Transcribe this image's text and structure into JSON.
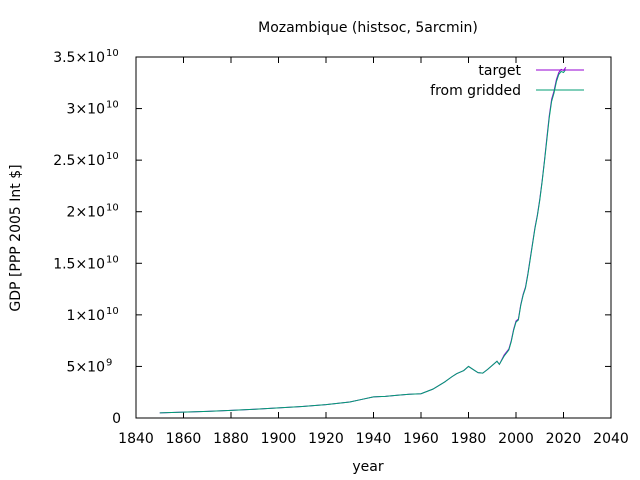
{
  "chart_data": {
    "type": "line",
    "title": "Mozambique (histsoc, 5arcmin)",
    "xlabel": "year",
    "ylabel": "GDP [PPP 2005 Int $]",
    "xlim": [
      1840,
      2040
    ],
    "ylim": [
      0,
      35000000000
    ],
    "x_ticks": [
      1840,
      1860,
      1880,
      1900,
      1920,
      1940,
      1960,
      1980,
      2000,
      2020,
      2040
    ],
    "y_ticks": [
      {
        "value": 0,
        "mantissa": "0",
        "exp": ""
      },
      {
        "value": 5000000000,
        "mantissa": "5×10",
        "exp": "9"
      },
      {
        "value": 10000000000,
        "mantissa": "1×10",
        "exp": "10"
      },
      {
        "value": 15000000000,
        "mantissa": "1.5×10",
        "exp": "10"
      },
      {
        "value": 20000000000,
        "mantissa": "2×10",
        "exp": "10"
      },
      {
        "value": 25000000000,
        "mantissa": "2.5×10",
        "exp": "10"
      },
      {
        "value": 30000000000,
        "mantissa": "3×10",
        "exp": "10"
      },
      {
        "value": 35000000000,
        "mantissa": "3.5×10",
        "exp": "10"
      }
    ],
    "legend_position": "top-right",
    "grid": false,
    "series": [
      {
        "name": "target",
        "color": "#9400d3",
        "x": [
          1850,
          1860,
          1870,
          1880,
          1890,
          1900,
          1910,
          1920,
          1930,
          1935,
          1940,
          1945,
          1950,
          1955,
          1960,
          1965,
          1970,
          1973,
          1975,
          1978,
          1980,
          1982,
          1984,
          1986,
          1988,
          1990,
          1992,
          1993,
          1995,
          1997,
          1998,
          1999,
          2000,
          2001,
          2002,
          2003,
          2004,
          2005,
          2006,
          2007,
          2008,
          2009,
          2010,
          2011,
          2012,
          2013,
          2014,
          2015,
          2016,
          2017,
          2018,
          2019,
          2020,
          2021
        ],
        "y": [
          500000000,
          570000000,
          640000000,
          740000000,
          850000000,
          980000000,
          1120000000,
          1300000000,
          1550000000,
          1800000000,
          2050000000,
          2100000000,
          2200000000,
          2300000000,
          2350000000,
          2800000000,
          3500000000,
          4000000000,
          4300000000,
          4600000000,
          5000000000,
          4700000000,
          4400000000,
          4350000000,
          4700000000,
          5100000000,
          5500000000,
          5200000000,
          6100000000,
          6700000000,
          7500000000,
          8600000000,
          9400000000,
          9600000000,
          11000000000,
          12000000000,
          12700000000,
          14000000000,
          15500000000,
          17000000000,
          18500000000,
          19700000000,
          21200000000,
          23000000000,
          25000000000,
          27200000000,
          29300000000,
          30900000000,
          31700000000,
          32800000000,
          33500000000,
          33800000000,
          33700000000,
          34000000000
        ]
      },
      {
        "name": "from gridded",
        "color": "#009e73",
        "x": [
          1850,
          1860,
          1870,
          1880,
          1890,
          1900,
          1910,
          1920,
          1930,
          1935,
          1940,
          1945,
          1950,
          1955,
          1960,
          1965,
          1970,
          1973,
          1975,
          1978,
          1980,
          1982,
          1984,
          1986,
          1988,
          1990,
          1992,
          1993,
          1995,
          1997,
          1998,
          1999,
          2000,
          2001,
          2002,
          2003,
          2004,
          2005,
          2006,
          2007,
          2008,
          2009,
          2010,
          2011,
          2012,
          2013,
          2014,
          2015,
          2016,
          2017,
          2018,
          2019,
          2020,
          2021
        ],
        "y": [
          500000000,
          570000000,
          640000000,
          740000000,
          850000000,
          980000000,
          1120000000,
          1300000000,
          1550000000,
          1800000000,
          2050000000,
          2100000000,
          2200000000,
          2300000000,
          2350000000,
          2800000000,
          3500000000,
          4000000000,
          4300000000,
          4600000000,
          5000000000,
          4700000000,
          4400000000,
          4350000000,
          4700000000,
          5100000000,
          5500000000,
          5200000000,
          6000000000,
          6600000000,
          7400000000,
          8500000000,
          9300000000,
          9500000000,
          10900000000,
          11900000000,
          12600000000,
          13900000000,
          15400000000,
          16900000000,
          18400000000,
          19600000000,
          21100000000,
          22900000000,
          24900000000,
          27000000000,
          29100000000,
          30700000000,
          31500000000,
          32600000000,
          33300000000,
          33600000000,
          33500000000,
          33800000000
        ]
      }
    ]
  }
}
